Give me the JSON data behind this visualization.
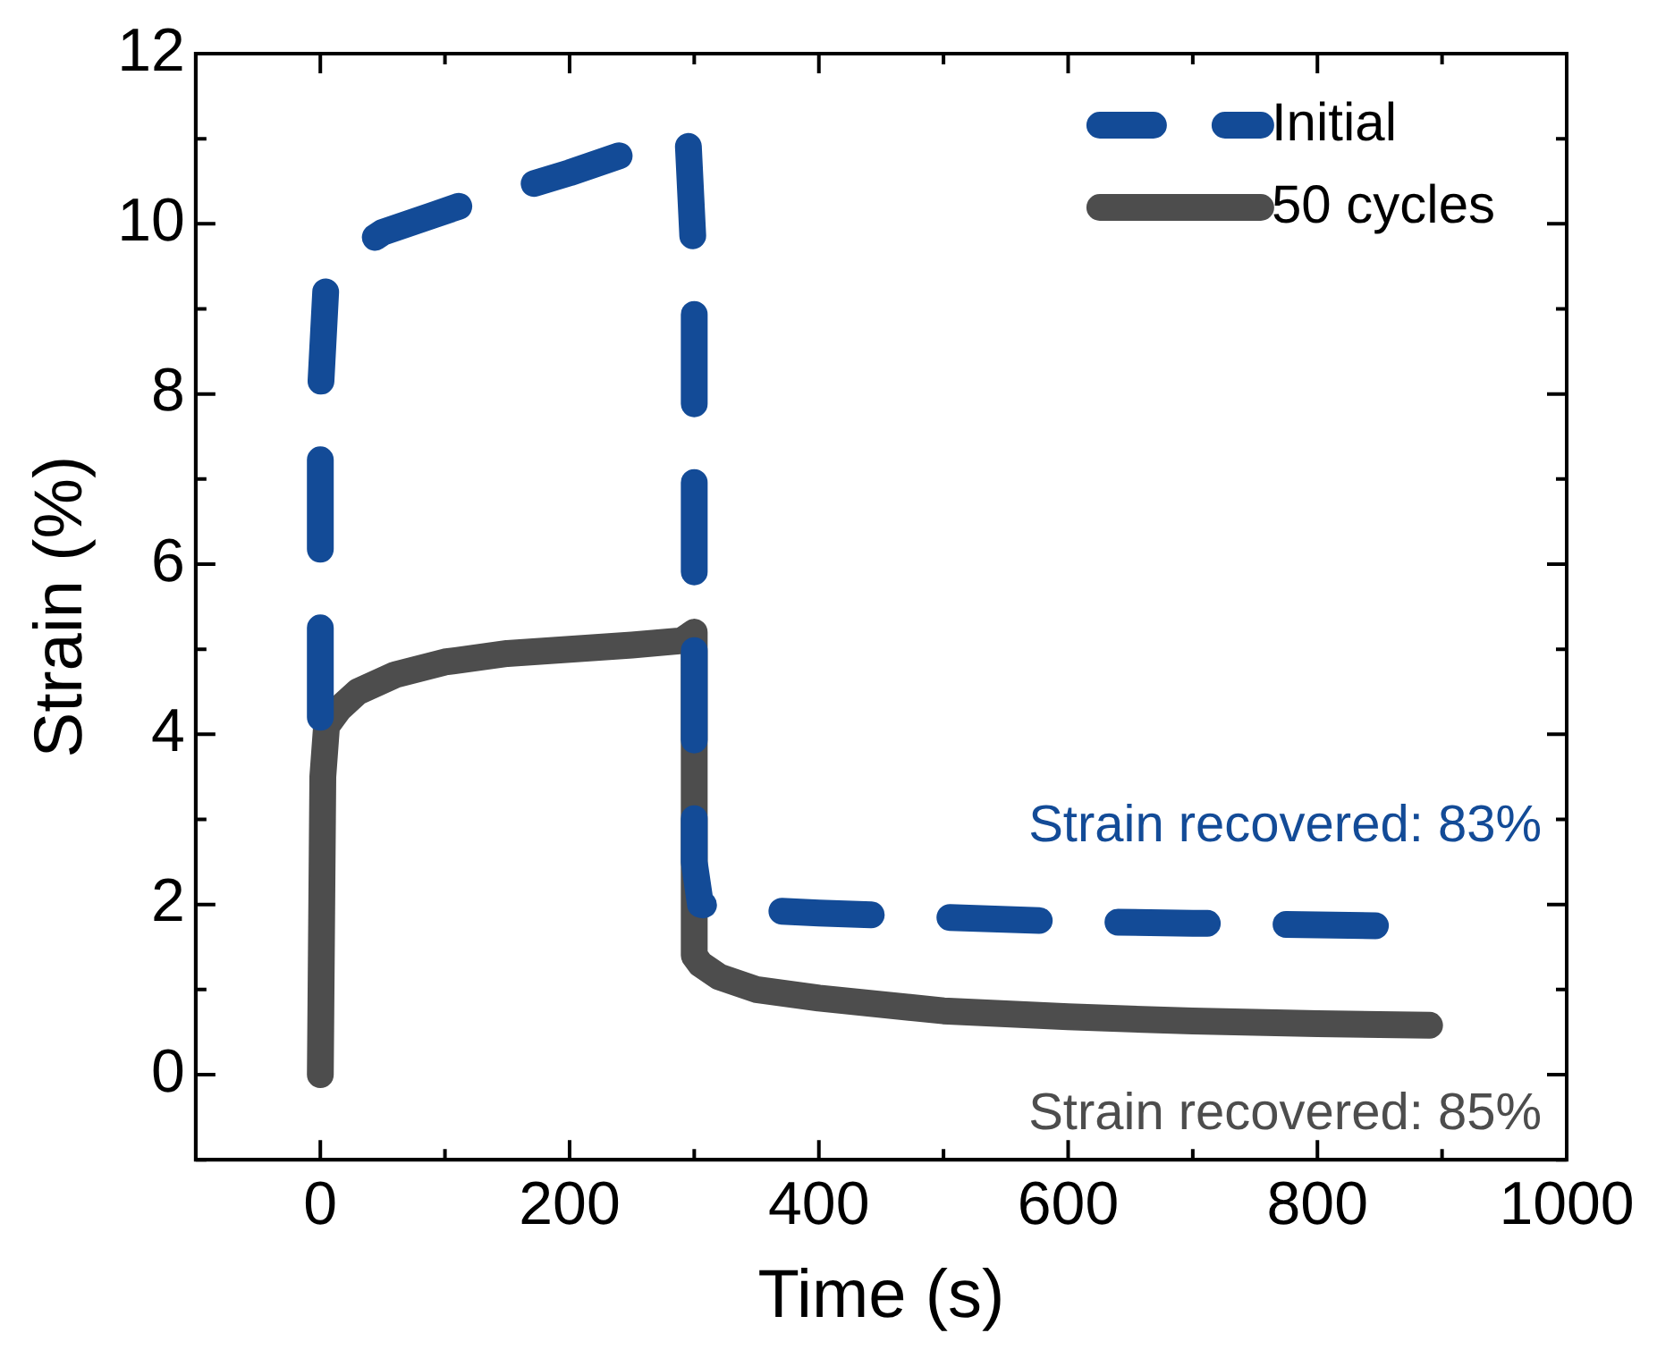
{
  "chart_data": {
    "type": "line",
    "xlabel": "Time (s)",
    "ylabel": "Strain (%)",
    "xlim": [
      -100,
      1000
    ],
    "xticks": [
      0,
      {
        "value": 100,
        "label": null
      },
      200,
      {
        "value": 300,
        "label": null
      },
      400,
      {
        "value": 500,
        "label": null
      },
      600,
      {
        "value": 700,
        "label": null
      },
      800,
      {
        "value": 900,
        "label": null
      },
      1000
    ],
    "ylim": [
      -1,
      12
    ],
    "yticks": [
      {
        "value": -1,
        "label": null
      },
      0,
      {
        "value": 1,
        "label": null
      },
      2,
      {
        "value": 3,
        "label": null
      },
      4,
      {
        "value": 5,
        "label": null
      },
      6,
      {
        "value": 7,
        "label": null
      },
      8,
      {
        "value": 9,
        "label": null
      },
      10,
      {
        "value": 11,
        "label": null
      },
      12
    ],
    "grid": false,
    "legend": "top right",
    "marker": "none",
    "series": [
      {
        "name": "Initial",
        "color": "#134b97",
        "line_style": "dashed",
        "x": [
          0,
          0,
          5,
          20,
          50,
          90,
          120,
          155,
          200,
          240,
          270,
          295,
          300,
          300,
          305,
          330,
          400,
          500,
          600,
          700,
          800,
          850
        ],
        "values": [
          4.2,
          8.0,
          9.4,
          9.6,
          9.9,
          10.1,
          10.25,
          10.4,
          10.6,
          10.8,
          10.9,
          11.0,
          9.5,
          2.5,
          2.0,
          1.95,
          1.9,
          1.85,
          1.8,
          1.78,
          1.76,
          1.75
        ]
      },
      {
        "name": "50 cycles",
        "color": "#4d4d4d",
        "line_style": "solid",
        "x": [
          0,
          2,
          5,
          15,
          30,
          60,
          100,
          150,
          200,
          250,
          290,
          300,
          300,
          305,
          320,
          350,
          400,
          500,
          600,
          700,
          800,
          890
        ],
        "values": [
          0,
          3.5,
          4.1,
          4.3,
          4.5,
          4.7,
          4.85,
          4.95,
          5.0,
          5.05,
          5.1,
          5.2,
          1.4,
          1.3,
          1.15,
          1.0,
          0.9,
          0.75,
          0.68,
          0.63,
          0.6,
          0.58
        ]
      }
    ],
    "annotations": [
      "Strain recovered: 83%",
      "Strain recovered: 85%"
    ]
  }
}
